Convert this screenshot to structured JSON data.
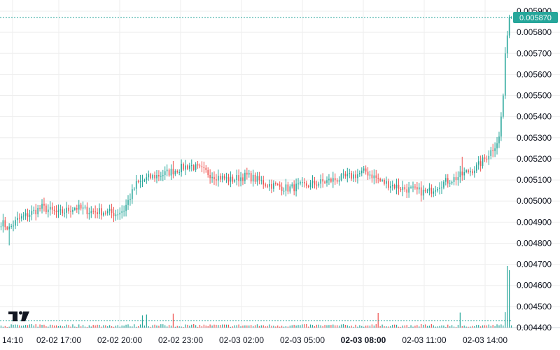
{
  "chart_data": {
    "type": "candlestick",
    "colors": {
      "up": "#26a69a",
      "down": "#ef5350",
      "grid": "#eeeeee",
      "last_price": "#26a69a"
    },
    "y_axis": {
      "range": [
        0.0044,
        0.0059
      ],
      "ticks": [
        "0.004400",
        "0.004500",
        "0.004600",
        "0.004700",
        "0.004800",
        "0.004900",
        "0.005000",
        "0.005100",
        "0.005200",
        "0.005300",
        "0.005400",
        "0.005500",
        "0.005600",
        "0.005700",
        "0.005800",
        "0.005900"
      ]
    },
    "x_axis": {
      "labels": [
        {
          "text": "14:10",
          "bold": false
        },
        {
          "text": "02-02 17:00",
          "bold": false
        },
        {
          "text": "02-02 20:00",
          "bold": false
        },
        {
          "text": "02-02 23:00",
          "bold": false
        },
        {
          "text": "02-03 02:00",
          "bold": false
        },
        {
          "text": "02-03 05:00",
          "bold": false
        },
        {
          "text": "02-03 08:00",
          "bold": true
        },
        {
          "text": "02-03 11:00",
          "bold": false
        },
        {
          "text": "02-03 14:00",
          "bold": false
        }
      ]
    },
    "last_price": "0.005870",
    "price_anchors": [
      [
        0,
        0.0049
      ],
      [
        4,
        0.00487
      ],
      [
        8,
        0.00491
      ],
      [
        12,
        0.00493
      ],
      [
        20,
        0.00497
      ],
      [
        28,
        0.00494
      ],
      [
        36,
        0.00497
      ],
      [
        44,
        0.00495
      ],
      [
        50,
        0.00495
      ],
      [
        56,
        0.00494
      ],
      [
        60,
        0.00496
      ],
      [
        66,
        0.00508
      ],
      [
        72,
        0.00511
      ],
      [
        80,
        0.00513
      ],
      [
        92,
        0.00517
      ],
      [
        104,
        0.00512
      ],
      [
        112,
        0.0051
      ],
      [
        120,
        0.00512
      ],
      [
        130,
        0.00508
      ],
      [
        140,
        0.00506
      ],
      [
        152,
        0.00508
      ],
      [
        162,
        0.0051
      ],
      [
        172,
        0.00512
      ],
      [
        178,
        0.00514
      ],
      [
        186,
        0.00509
      ],
      [
        196,
        0.00506
      ],
      [
        208,
        0.00504
      ],
      [
        214,
        0.00508
      ],
      [
        222,
        0.00511
      ],
      [
        232,
        0.00516
      ],
      [
        236,
        0.0052
      ],
      [
        240,
        0.00525
      ],
      [
        243,
        0.0053
      ],
      [
        245,
        0.0055
      ],
      [
        246,
        0.0057
      ],
      [
        248,
        0.00587
      ]
    ]
  }
}
